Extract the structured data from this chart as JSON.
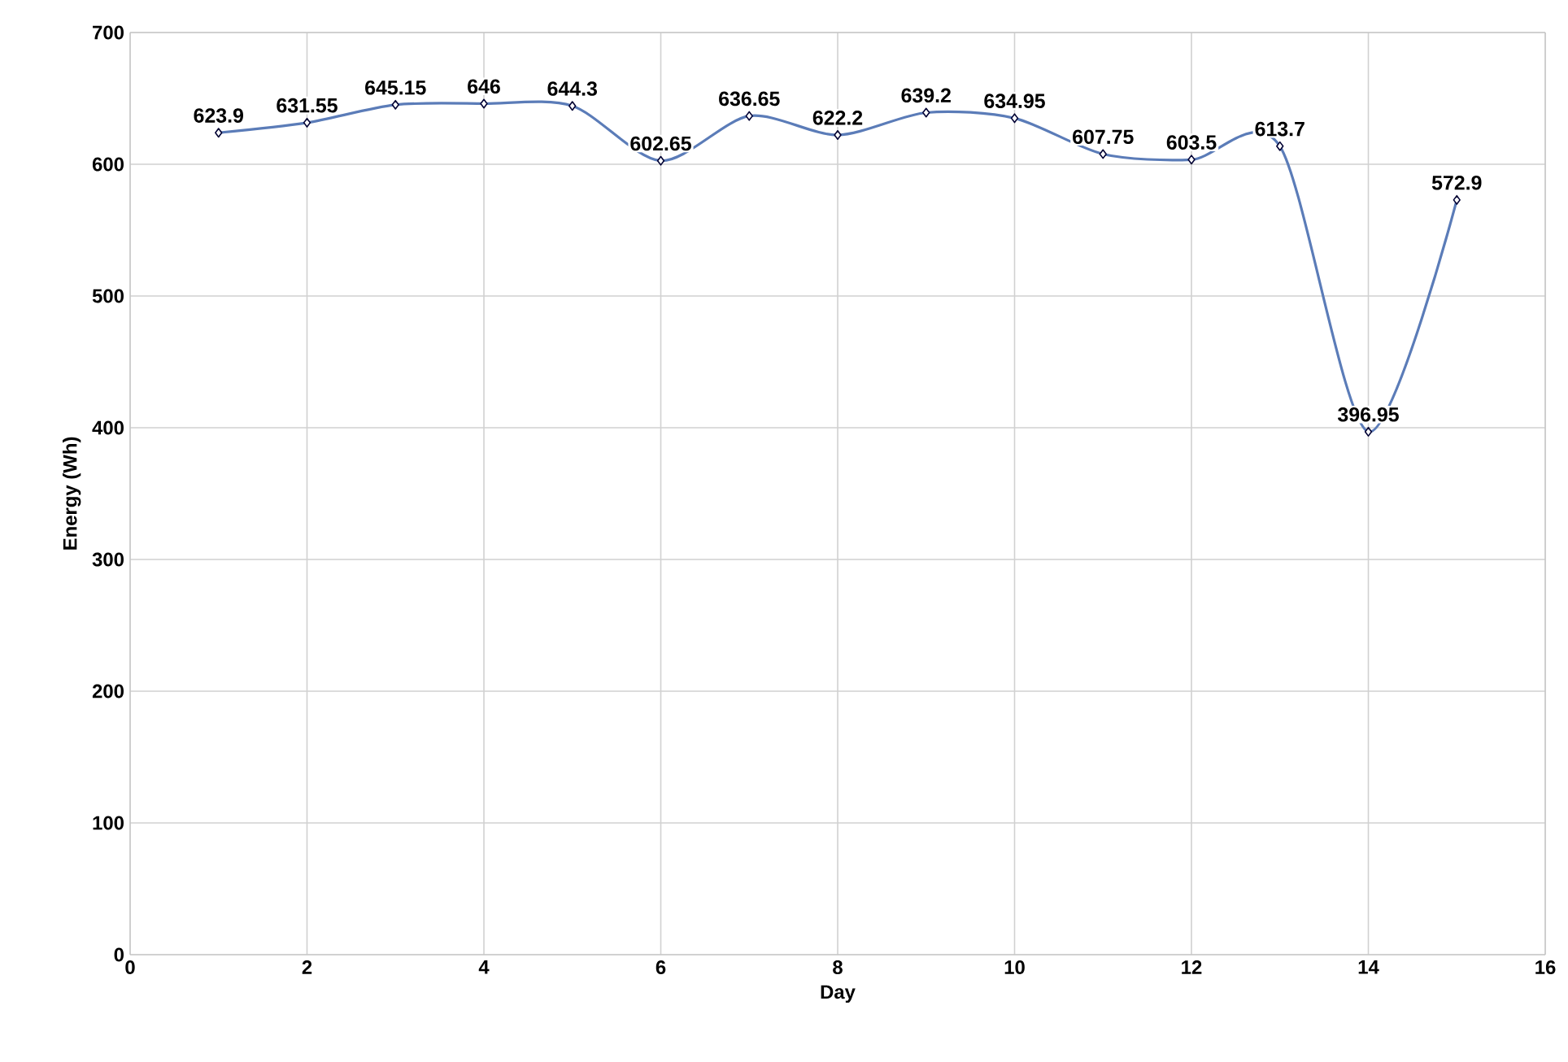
{
  "chart_data": {
    "type": "line",
    "xlabel": "Day",
    "ylabel": "Energy (Wh)",
    "x": [
      1,
      2,
      3,
      4,
      5,
      6,
      7,
      8,
      9,
      10,
      11,
      12,
      13,
      14,
      15
    ],
    "series": [
      {
        "color": "#5b7cb8",
        "values": [
          623.9,
          631.55,
          645.15,
          646,
          644.3,
          602.65,
          636.65,
          622.2,
          639.2,
          634.95,
          607.75,
          603.5,
          613.7,
          396.95,
          572.9
        ]
      }
    ],
    "xlim": [
      0,
      16
    ],
    "xticks": [
      0,
      2,
      4,
      6,
      8,
      10,
      12,
      14,
      16
    ],
    "ylim": [
      0,
      700
    ],
    "yticks": [
      0,
      100,
      200,
      300,
      400,
      500,
      600,
      700
    ],
    "grid": true,
    "marker": "diamond",
    "line_style": "solid",
    "data_labels": true
  }
}
